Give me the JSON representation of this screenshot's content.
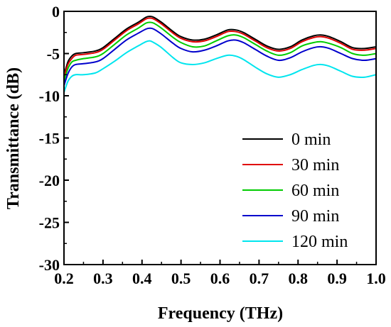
{
  "chart_data": {
    "type": "line",
    "xlabel": "Frequency (THz)",
    "ylabel": "Transmittance (dB)",
    "xlim": [
      0.2,
      1.0
    ],
    "ylim": [
      -30,
      0
    ],
    "xticks": [
      "0.2",
      "0.3",
      "0.4",
      "0.5",
      "0.6",
      "0.7",
      "0.8",
      "0.9",
      "1.0"
    ],
    "yticks": [
      "0",
      "-5",
      "-10",
      "-15",
      "-20",
      "-25",
      "-30"
    ],
    "grid": false,
    "legend_position": "lower-right",
    "x": [
      0.2,
      0.21,
      0.22,
      0.23,
      0.25,
      0.28,
      0.3,
      0.33,
      0.36,
      0.39,
      0.41,
      0.42,
      0.43,
      0.45,
      0.48,
      0.5,
      0.53,
      0.56,
      0.59,
      0.62,
      0.64,
      0.66,
      0.69,
      0.72,
      0.75,
      0.78,
      0.81,
      0.84,
      0.86,
      0.88,
      0.91,
      0.94,
      0.97,
      1.0
    ],
    "series": [
      {
        "name": "0 min",
        "color": "#000000",
        "values": [
          -7.6,
          -6.0,
          -5.3,
          -5.0,
          -4.9,
          -4.7,
          -4.3,
          -3.2,
          -2.1,
          -1.3,
          -0.7,
          -0.6,
          -0.7,
          -1.3,
          -2.4,
          -3.0,
          -3.4,
          -3.3,
          -2.8,
          -2.2,
          -2.2,
          -2.5,
          -3.3,
          -4.1,
          -4.5,
          -4.2,
          -3.4,
          -2.9,
          -2.8,
          -3.0,
          -3.6,
          -4.3,
          -4.4,
          -4.2
        ]
      },
      {
        "name": "30 min",
        "color": "#e00000",
        "values": [
          -7.8,
          -6.3,
          -5.6,
          -5.2,
          -5.1,
          -4.9,
          -4.5,
          -3.4,
          -2.3,
          -1.5,
          -0.9,
          -0.8,
          -0.9,
          -1.5,
          -2.6,
          -3.2,
          -3.6,
          -3.5,
          -3.0,
          -2.4,
          -2.4,
          -2.7,
          -3.5,
          -4.3,
          -4.7,
          -4.4,
          -3.6,
          -3.1,
          -3.0,
          -3.2,
          -3.8,
          -4.5,
          -4.6,
          -4.4
        ]
      },
      {
        "name": "60 min",
        "color": "#00cc00",
        "values": [
          -8.3,
          -6.8,
          -6.0,
          -5.8,
          -5.6,
          -5.4,
          -5.0,
          -3.9,
          -2.8,
          -2.0,
          -1.4,
          -1.3,
          -1.4,
          -2.0,
          -3.1,
          -3.7,
          -4.2,
          -4.1,
          -3.5,
          -2.9,
          -2.8,
          -3.1,
          -3.9,
          -4.7,
          -5.2,
          -4.9,
          -4.1,
          -3.7,
          -3.6,
          -3.8,
          -4.3,
          -5.0,
          -5.2,
          -5.0
        ]
      },
      {
        "name": "90 min",
        "color": "#0000cc",
        "values": [
          -8.8,
          -7.4,
          -6.6,
          -6.3,
          -6.2,
          -6.0,
          -5.6,
          -4.5,
          -3.4,
          -2.6,
          -2.1,
          -2.0,
          -2.1,
          -2.7,
          -3.8,
          -4.4,
          -4.8,
          -4.6,
          -4.1,
          -3.5,
          -3.4,
          -3.7,
          -4.5,
          -5.3,
          -5.8,
          -5.5,
          -4.8,
          -4.3,
          -4.2,
          -4.4,
          -5.0,
          -5.6,
          -5.8,
          -5.6
        ]
      },
      {
        "name": "120 min",
        "color": "#00e5ee",
        "values": [
          -9.6,
          -8.3,
          -7.7,
          -7.5,
          -7.5,
          -7.3,
          -6.8,
          -5.9,
          -4.9,
          -4.1,
          -3.6,
          -3.5,
          -3.7,
          -4.3,
          -5.5,
          -6.1,
          -6.3,
          -6.1,
          -5.6,
          -5.2,
          -5.3,
          -5.7,
          -6.6,
          -7.4,
          -7.8,
          -7.5,
          -6.9,
          -6.4,
          -6.3,
          -6.5,
          -7.1,
          -7.7,
          -7.8,
          -7.5
        ]
      }
    ]
  }
}
